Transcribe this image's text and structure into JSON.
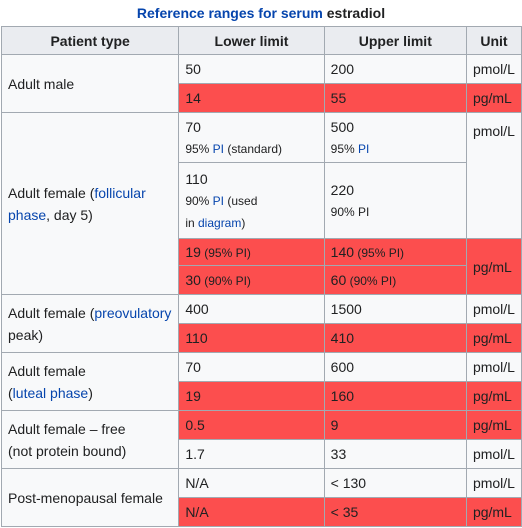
{
  "caption": {
    "link": "Reference ranges for serum",
    "rest": " estradiol"
  },
  "headers": [
    "Patient type",
    "Lower limit",
    "Upper limit",
    "Unit"
  ],
  "adult_male": {
    "label": "Adult male",
    "r1": {
      "lower": "50",
      "upper": "200",
      "unit": "pmol/L"
    },
    "r2": {
      "lower": "14",
      "upper": "55",
      "unit": "pg/mL"
    }
  },
  "adult_female_follicular": {
    "label_a": "Adult female (",
    "label_link": "follicular phase",
    "label_b": ", day 5)",
    "r1": {
      "lower": "70",
      "lower_sub_a": "95% ",
      "lower_sub_link": "PI",
      "lower_sub_b": " (standard)",
      "upper": "500",
      "upper_sub_a": "95% ",
      "upper_sub_link": "PI"
    },
    "r2": {
      "lower": "110",
      "lower_sub_a": "90% ",
      "lower_sub_link": "PI",
      "lower_sub_b": " (used",
      "lower_sub_c": "in ",
      "lower_sub_link2": "diagram",
      "lower_sub_d": ")",
      "upper": "220",
      "upper_sub": "90% PI"
    },
    "unit_pmol": "pmol/L",
    "r3": {
      "lower": "19",
      "lower_sub": " (95% PI)",
      "upper": "140",
      "upper_sub": " (95% PI)"
    },
    "r4": {
      "lower": "30",
      "lower_sub": " (90% PI)",
      "upper": "60",
      "upper_sub": " (90% PI)"
    },
    "unit_pg": "pg/mL"
  },
  "adult_female_preovulatory": {
    "label_a": "Adult female (",
    "label_link": "preovulatory",
    "label_b": "peak)",
    "r1": {
      "lower": "400",
      "upper": "1500",
      "unit": "pmol/L"
    },
    "r2": {
      "lower": "110",
      "upper": "410",
      "unit": "pg/mL"
    }
  },
  "adult_female_luteal": {
    "label_a": "Adult female",
    "label_b": "(",
    "label_link": "luteal phase",
    "label_c": ")",
    "r1": {
      "lower": "70",
      "upper": "600",
      "unit": "pmol/L"
    },
    "r2": {
      "lower": "19",
      "upper": "160",
      "unit": "pg/mL"
    }
  },
  "adult_female_free": {
    "label_a": "Adult female – free",
    "label_b": "(not protein bound)",
    "r1": {
      "lower": "0.5",
      "upper": "9",
      "unit": "pg/mL"
    },
    "r2": {
      "lower": "1.7",
      "upper": "33",
      "unit": "pmol/L"
    }
  },
  "postmenopausal": {
    "label": "Post-menopausal female",
    "r1": {
      "lower": "N/A",
      "upper": "< 130",
      "unit": "pmol/L"
    },
    "r2": {
      "lower": "N/A",
      "upper": "< 35",
      "unit": "pg/mL"
    }
  },
  "colors": {
    "highlight": "#fc4e4e",
    "header_bg": "#eaecf0",
    "cell_bg": "#f8f9fa",
    "link": "#0645ad"
  }
}
